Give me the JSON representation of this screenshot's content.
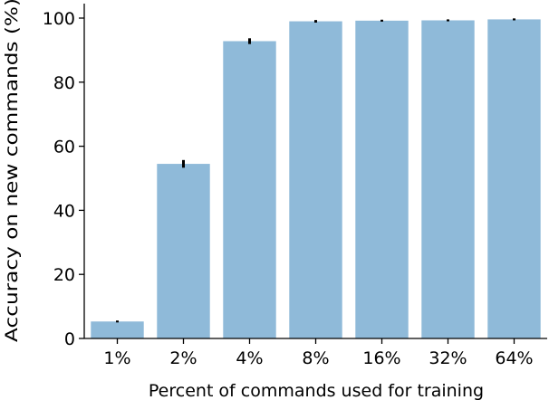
{
  "chart_data": {
    "type": "bar",
    "categories": [
      "1%",
      "2%",
      "4%",
      "8%",
      "16%",
      "32%",
      "64%"
    ],
    "values": [
      5.3,
      54.5,
      92.8,
      99.0,
      99.2,
      99.3,
      99.6
    ],
    "errors": [
      0.3,
      1.2,
      0.9,
      0.4,
      0.3,
      0.3,
      0.3
    ],
    "xlabel": "Percent of commands used for training",
    "ylabel": "Accuracy on new commands (%)",
    "ylim": [
      0,
      100
    ],
    "yticks": [
      0,
      20,
      40,
      60,
      80,
      100
    ],
    "grid": false,
    "bar_color": "#8fbad9",
    "error_color": "#000000"
  }
}
